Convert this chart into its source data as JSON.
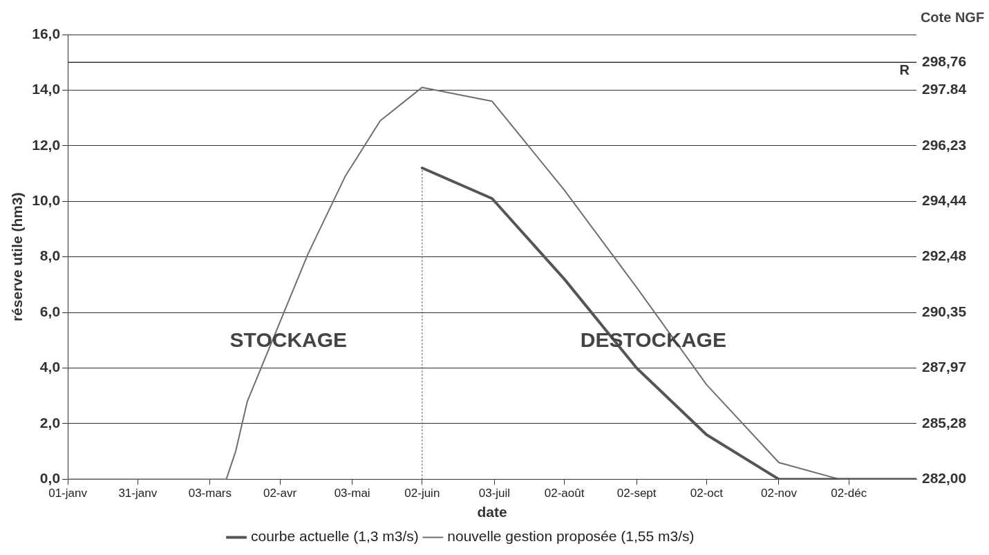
{
  "chart_data": {
    "type": "line",
    "xlabel": "date",
    "ylabel": "réserve utile (hm3)",
    "xlim": [
      "--01-01",
      "--12-31"
    ],
    "xticks": [
      {
        "value": "--01-01",
        "label": "01-janv"
      },
      {
        "value": "--01-31",
        "label": "31-janv"
      },
      {
        "value": "--03-03",
        "label": "03-mars"
      },
      {
        "value": "--04-02",
        "label": "02-avr"
      },
      {
        "value": "--05-03",
        "label": "03-mai"
      },
      {
        "value": "--06-02",
        "label": "02-juin"
      },
      {
        "value": "--07-03",
        "label": "03-juil"
      },
      {
        "value": "--08-02",
        "label": "02-août"
      },
      {
        "value": "--09-02",
        "label": "02-sept"
      },
      {
        "value": "--10-02",
        "label": "02-oct"
      },
      {
        "value": "--11-02",
        "label": "02-nov"
      },
      {
        "value": "--12-02",
        "label": "02-déc"
      }
    ],
    "ylim": [
      0,
      16
    ],
    "yticks": [
      {
        "value": 0,
        "label": "0,0"
      },
      {
        "value": 2,
        "label": "2,0"
      },
      {
        "value": 4,
        "label": "4,0"
      },
      {
        "value": 6,
        "label": "6,0"
      },
      {
        "value": 8,
        "label": "8,0"
      },
      {
        "value": 10,
        "label": "10,0"
      },
      {
        "value": 12,
        "label": "12,0"
      },
      {
        "value": 14,
        "label": "14,0"
      },
      {
        "value": 16,
        "label": "16,0"
      }
    ],
    "series": [
      {
        "name": "courbe actuelle (1,3 m3/s)",
        "color": "#555555",
        "x": [
          "--06-02",
          "--07-02",
          "--08-02",
          "--09-02",
          "--10-02",
          "--11-02",
          "--12-31"
        ],
        "values": [
          11.2,
          10.1,
          7.2,
          4.0,
          1.6,
          0,
          0
        ]
      },
      {
        "name": "nouvelle gestion proposée (1,55 m3/s)",
        "color": "#6e6e6e",
        "x": [
          "--01-01",
          "--03-10",
          "--03-14",
          "--03-19",
          "--04-14",
          "--04-30",
          "--05-15",
          "--06-02",
          "--07-02",
          "--08-02",
          "--09-02",
          "--10-02",
          "--11-02",
          "--11-28",
          "--12-31"
        ],
        "values": [
          0,
          0,
          1.0,
          2.8,
          8.1,
          10.9,
          12.9,
          14.1,
          13.6,
          10.4,
          6.9,
          3.4,
          0.6,
          0,
          0
        ]
      },
      {
        "color": "#555555",
        "line_style": "dotted",
        "x": [
          "--06-02",
          "--06-02"
        ],
        "values": [
          0,
          11.2
        ]
      }
    ],
    "ref_lines": [
      {
        "axis": "y",
        "value": 15,
        "label": "R"
      }
    ],
    "annotations": [
      "STOCKAGE",
      "DESTOCKAGE",
      "Cote NGF",
      "282,00",
      "285,28",
      "287,97",
      "290,35",
      "292,48",
      "294,44",
      "296,23",
      "297.84",
      "298,76"
    ],
    "grid": "y",
    "legend": "bottom",
    "marker": "none",
    "line_style": "solid"
  }
}
